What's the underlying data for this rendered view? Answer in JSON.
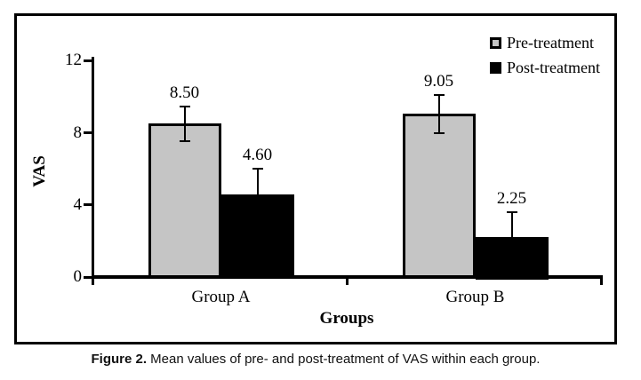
{
  "figure_caption": {
    "label": "Figure 2.",
    "text": " Mean values of pre- and post-treatment of VAS within each group."
  },
  "chart_data": {
    "type": "bar",
    "title": "",
    "xlabel": "Groups",
    "ylabel": "VAS",
    "categories": [
      "Group A",
      "Group B"
    ],
    "series": [
      {
        "name": "Pre-treatment",
        "values": [
          8.5,
          9.05
        ],
        "data_labels": [
          "8.50",
          "9.05"
        ],
        "errors": [
          0.95,
          1.05
        ],
        "color": "#c5c5c5"
      },
      {
        "name": "Post-treatment",
        "values": [
          4.6,
          2.25
        ],
        "data_labels": [
          "4.60",
          "2.25"
        ],
        "errors": [
          1.4,
          1.35
        ],
        "color": "#000000"
      }
    ],
    "ylim": [
      0,
      12
    ],
    "yticks": [
      0,
      4,
      8,
      12
    ],
    "grid": false,
    "error_bars": true,
    "legend_position": "top-right",
    "axis_color": "#000000",
    "background": "#ffffff"
  }
}
